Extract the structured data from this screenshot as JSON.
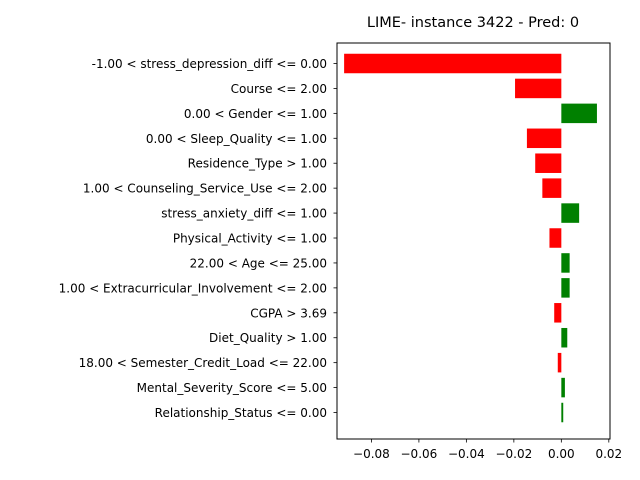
{
  "chart_data": {
    "type": "bar",
    "orientation": "horizontal",
    "title": "LIME- instance 3422 - Pred: 0",
    "xlabel": "",
    "ylabel": "",
    "xlim": [
      -0.0945,
      0.0205
    ],
    "xticks": [
      -0.08,
      -0.06,
      -0.04,
      -0.02,
      0.0,
      0.02
    ],
    "xtick_labels": [
      "−0.08",
      "−0.06",
      "−0.04",
      "−0.02",
      "0.00",
      "0.02"
    ],
    "grid": false,
    "colors": {
      "positive": "#008000",
      "negative": "#ff0000"
    },
    "categories": [
      "-1.00 < stress_depression_diff <= 0.00",
      "Course <= 2.00",
      "0.00 < Gender <= 1.00",
      "0.00 < Sleep_Quality <= 1.00",
      "Residence_Type > 1.00",
      "1.00 < Counseling_Service_Use <= 2.00",
      "stress_anxiety_diff <= 1.00",
      "Physical_Activity <= 1.00",
      "22.00 < Age <= 25.00",
      "1.00 < Extracurricular_Involvement <= 2.00",
      "CGPA > 3.69",
      "Diet_Quality > 1.00",
      "18.00 < Semester_Credit_Load <= 22.00",
      "Mental_Severity_Score <= 5.00",
      "Relationship_Status <= 0.00"
    ],
    "values": [
      -0.0915,
      -0.0195,
      0.015,
      -0.0145,
      -0.011,
      -0.008,
      0.0075,
      -0.005,
      0.0035,
      0.0035,
      -0.003,
      0.0025,
      -0.0015,
      0.0015,
      0.0008
    ]
  }
}
